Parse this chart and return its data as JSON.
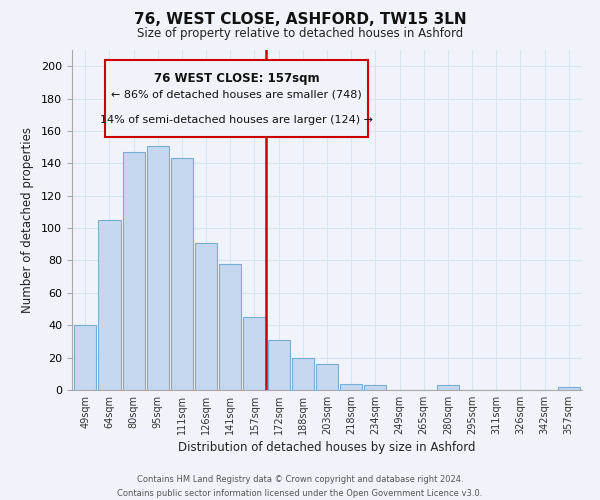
{
  "title": "76, WEST CLOSE, ASHFORD, TW15 3LN",
  "subtitle": "Size of property relative to detached houses in Ashford",
  "xlabel": "Distribution of detached houses by size in Ashford",
  "ylabel": "Number of detached properties",
  "categories": [
    "49sqm",
    "64sqm",
    "80sqm",
    "95sqm",
    "111sqm",
    "126sqm",
    "141sqm",
    "157sqm",
    "172sqm",
    "188sqm",
    "203sqm",
    "218sqm",
    "234sqm",
    "249sqm",
    "265sqm",
    "280sqm",
    "295sqm",
    "311sqm",
    "326sqm",
    "342sqm",
    "357sqm"
  ],
  "values": [
    40,
    105,
    147,
    151,
    143,
    91,
    78,
    45,
    31,
    20,
    16,
    4,
    3,
    0,
    0,
    3,
    0,
    0,
    0,
    0,
    2
  ],
  "bar_color": "#c5d8f0",
  "bar_edge_color": "#7aadd4",
  "highlight_index": 7,
  "highlight_line_color": "#cc0000",
  "annotation_title": "76 WEST CLOSE: 157sqm",
  "annotation_line1": "← 86% of detached houses are smaller (748)",
  "annotation_line2": "14% of semi-detached houses are larger (124) →",
  "annotation_box_edge_color": "#cc0000",
  "ylim": [
    0,
    210
  ],
  "yticks": [
    0,
    20,
    40,
    60,
    80,
    100,
    120,
    140,
    160,
    180,
    200
  ],
  "footer_line1": "Contains HM Land Registry data © Crown copyright and database right 2024.",
  "footer_line2": "Contains public sector information licensed under the Open Government Licence v3.0.",
  "bg_color": "#f0f4fa",
  "grid_color": "#d8e4f0"
}
